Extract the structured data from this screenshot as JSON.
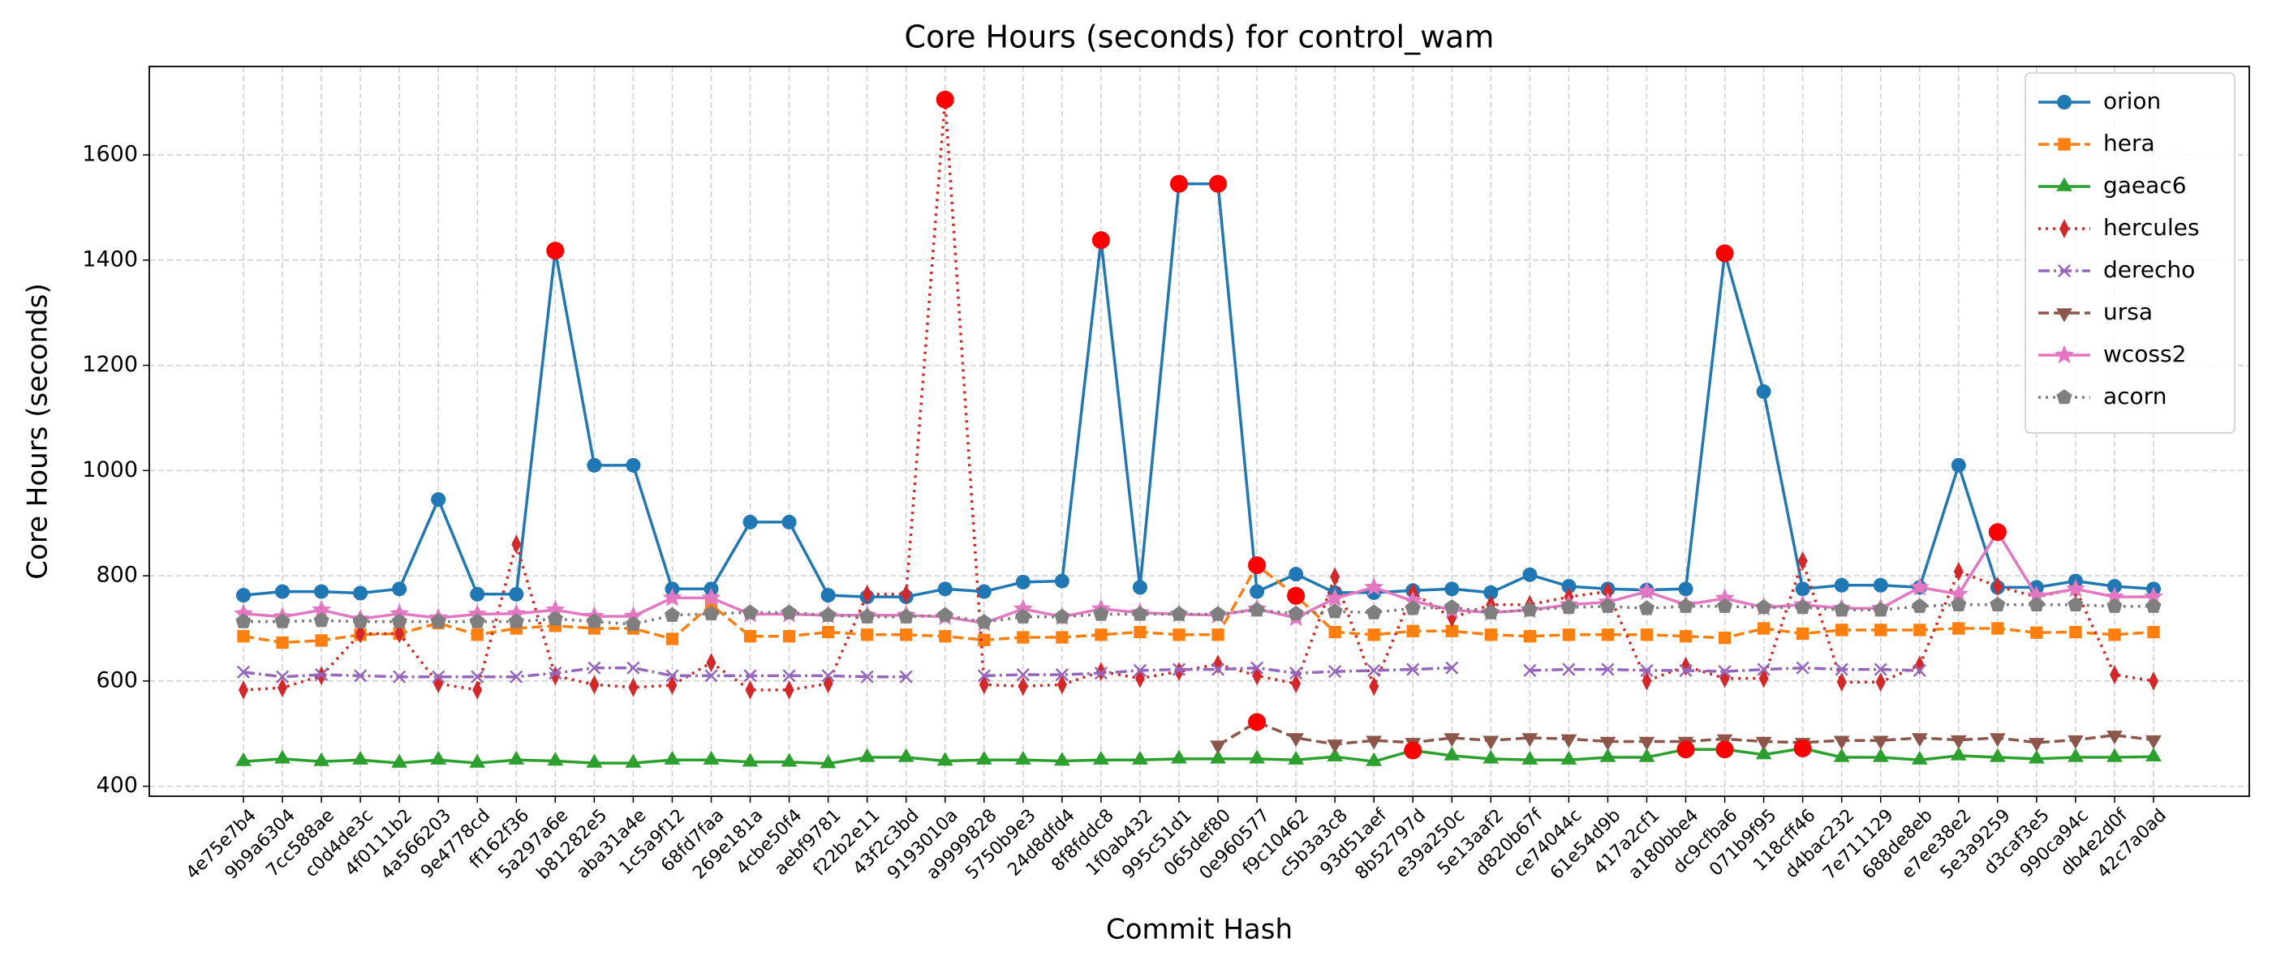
{
  "chart_data": {
    "type": "line",
    "title": "Core Hours (seconds) for control_wam",
    "xlabel": "Commit Hash",
    "ylabel": "Core Hours (seconds)",
    "categories": [
      "4e75e7b4",
      "9b9a6304",
      "7cc588ae",
      "c0d4de3c",
      "4f0111b2",
      "4a566203",
      "9e4778cd",
      "ff162f36",
      "5a297a6e",
      "b81282e5",
      "aba31a4e",
      "1c5a9f12",
      "68fd7faa",
      "269e181a",
      "4cbe50f4",
      "aebf9781",
      "f22b2e11",
      "43f2c3bd",
      "9193010a",
      "a9999828",
      "5750b9e3",
      "24d8dfd4",
      "8f8fddc8",
      "1f0ab432",
      "995c51d1",
      "065def80",
      "0e960577",
      "f9c10462",
      "c5b3a3c8",
      "93d51aef",
      "8b52797d",
      "e39a250c",
      "5e13aaf2",
      "d820b67f",
      "ce74044c",
      "61e54d9b",
      "417a2cf1",
      "a180bbe4",
      "dc9cfba6",
      "071b9f95",
      "118cff46",
      "d4bac232",
      "7e711129",
      "688de8eb",
      "e7ee38e2",
      "5e3a9259",
      "d3caf3e5",
      "990ca94c",
      "db4e2d0f",
      "42c7a0ad"
    ],
    "series": [
      {
        "name": "orion",
        "color": "#1f77b4",
        "linestyle": "solid",
        "marker": "circle",
        "values": [
          763,
          770,
          770,
          767,
          775,
          945,
          765,
          765,
          1418,
          1010,
          1010,
          775,
          775,
          902,
          902,
          763,
          760,
          760,
          775,
          770,
          788,
          790,
          1438,
          778,
          1545,
          1545,
          770,
          803,
          768,
          768,
          772,
          775,
          768,
          802,
          780,
          775,
          773,
          775,
          1413,
          1150,
          775,
          782,
          782,
          778,
          1010,
          778,
          778,
          790,
          780,
          775
        ],
        "anomalies": [
          8,
          22,
          24,
          25,
          38
        ]
      },
      {
        "name": "hera",
        "color": "#ff7f0e",
        "linestyle": "dashed",
        "marker": "square",
        "values": [
          685,
          673,
          677,
          688,
          690,
          710,
          688,
          700,
          705,
          700,
          700,
          680,
          745,
          685,
          685,
          693,
          688,
          688,
          685,
          678,
          683,
          683,
          688,
          693,
          688,
          688,
          820,
          762,
          693,
          688,
          695,
          695,
          688,
          685,
          688,
          688,
          688,
          685,
          682,
          700,
          690,
          697,
          697,
          697,
          700,
          700,
          692,
          693,
          688,
          693
        ],
        "anomalies": [
          26,
          27
        ]
      },
      {
        "name": "gaeac6",
        "color": "#2ca02c",
        "linestyle": "solid",
        "marker": "triangle-up",
        "values": [
          447,
          452,
          447,
          450,
          444,
          450,
          444,
          450,
          448,
          444,
          444,
          450,
          450,
          446,
          446,
          443,
          455,
          455,
          448,
          450,
          450,
          448,
          450,
          450,
          452,
          452,
          452,
          450,
          456,
          447,
          468,
          458,
          452,
          450,
          450,
          455,
          455,
          470,
          470,
          460,
          472,
          455,
          455,
          450,
          458,
          455,
          452,
          455,
          455,
          456
        ],
        "anomalies": [
          30,
          37,
          38,
          40
        ]
      },
      {
        "name": "hercules",
        "color": "#d62728",
        "linestyle": "dotted",
        "marker": "thin-diamond",
        "values": [
          583,
          587,
          610,
          690,
          690,
          595,
          583,
          860,
          610,
          593,
          588,
          592,
          635,
          583,
          583,
          595,
          765,
          765,
          1705,
          593,
          590,
          593,
          618,
          605,
          618,
          632,
          610,
          595,
          798,
          590,
          768,
          720,
          745,
          745,
          760,
          770,
          600,
          628,
          605,
          605,
          828,
          598,
          598,
          630,
          808,
          780,
          760,
          775,
          612,
          600
        ],
        "anomalies": [
          18
        ]
      },
      {
        "name": "derecho",
        "color": "#9467bd",
        "linestyle": "dashdot",
        "marker": "x",
        "values": [
          617,
          608,
          612,
          610,
          608,
          608,
          608,
          608,
          615,
          625,
          625,
          610,
          610,
          610,
          610,
          610,
          608,
          608,
          null,
          610,
          612,
          612,
          615,
          620,
          622,
          622,
          625,
          615,
          618,
          620,
          622,
          625,
          null,
          620,
          622,
          622,
          620,
          620,
          618,
          622,
          625,
          622,
          622,
          620,
          null,
          null,
          null,
          null,
          null,
          null
        ],
        "anomalies": []
      },
      {
        "name": "ursa",
        "color": "#8c564b",
        "linestyle": "dashed",
        "marker": "triangle-down",
        "values": [
          null,
          null,
          null,
          null,
          null,
          null,
          null,
          null,
          null,
          null,
          null,
          null,
          null,
          null,
          null,
          null,
          null,
          null,
          null,
          null,
          null,
          null,
          null,
          null,
          null,
          478,
          522,
          492,
          480,
          487,
          483,
          492,
          487,
          492,
          490,
          485,
          485,
          485,
          490,
          485,
          483,
          487,
          487,
          492,
          488,
          492,
          483,
          488,
          497,
          488
        ],
        "anomalies": [
          26
        ]
      },
      {
        "name": "wcoss2",
        "color": "#e377c2",
        "linestyle": "solid",
        "marker": "star",
        "values": [
          728,
          722,
          735,
          718,
          728,
          720,
          727,
          728,
          735,
          723,
          723,
          758,
          758,
          727,
          727,
          725,
          725,
          725,
          722,
          710,
          737,
          722,
          737,
          730,
          727,
          725,
          737,
          720,
          757,
          778,
          752,
          735,
          730,
          735,
          745,
          750,
          770,
          745,
          757,
          740,
          745,
          738,
          738,
          778,
          765,
          883,
          762,
          775,
          760,
          760
        ],
        "anomalies": [
          45
        ]
      },
      {
        "name": "acorn",
        "color": "#7f7f7f",
        "linestyle": "dotted",
        "marker": "pentagon",
        "values": [
          713,
          713,
          715,
          713,
          713,
          713,
          713,
          713,
          718,
          713,
          708,
          725,
          728,
          730,
          730,
          725,
          722,
          722,
          725,
          712,
          722,
          722,
          727,
          727,
          727,
          727,
          735,
          728,
          732,
          730,
          738,
          740,
          730,
          735,
          740,
          742,
          738,
          742,
          742,
          740,
          740,
          735,
          735,
          742,
          745,
          745,
          745,
          745,
          742,
          742
        ],
        "anomalies": []
      }
    ],
    "anomaly_color": "#ff0000",
    "ylim": [
      381,
      1768
    ],
    "yticks": [
      400,
      600,
      800,
      1000,
      1200,
      1400,
      1600
    ],
    "grid": true,
    "legend": "upper right"
  }
}
